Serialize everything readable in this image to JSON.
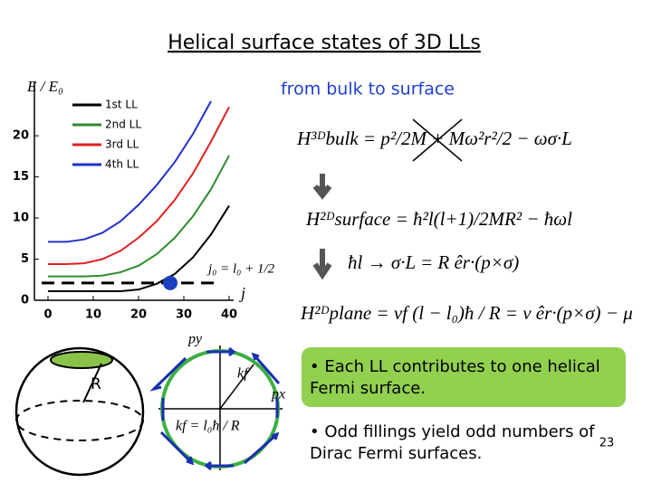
{
  "header": {
    "title": "Helical surface states of 3D LLs",
    "subtitle": "from bulk to surface"
  },
  "chart_data": {
    "type": "line",
    "ylabel": "E / E₀",
    "xlabel": "j",
    "annotation": "j₀ = l₀ + 1/2",
    "x": [
      0,
      4,
      8,
      12,
      16,
      20,
      24,
      28,
      32,
      36,
      40
    ],
    "series": [
      {
        "name": "1st LL",
        "color": "#000000",
        "values": [
          1.1,
          1.1,
          1.1,
          1.1,
          1.1,
          1.3,
          2.0,
          3.2,
          5.2,
          8.0,
          11.5
        ]
      },
      {
        "name": "2nd LL",
        "color": "#2e8b2e",
        "values": [
          2.9,
          2.9,
          2.9,
          3.0,
          3.4,
          4.2,
          5.6,
          7.6,
          10.2,
          13.5,
          17.6
        ]
      },
      {
        "name": "3rd LL",
        "color": "#e02020",
        "values": [
          4.4,
          4.4,
          4.5,
          5.0,
          6.0,
          7.6,
          9.6,
          12.2,
          15.4,
          19.3,
          23.5
        ]
      },
      {
        "name": "4th LL",
        "color": "#2030d0",
        "values": [
          7.1,
          7.1,
          7.4,
          8.2,
          9.6,
          11.6,
          14.0,
          16.8,
          20.2,
          24.2,
          null
        ]
      }
    ],
    "fermi_level": 2.1,
    "fermi_point": {
      "x": 27,
      "y": 2.1
    },
    "xlim": [
      -3,
      41
    ],
    "ylim": [
      0,
      26.5
    ],
    "xticks": [
      0,
      10,
      20,
      30,
      40
    ],
    "yticks": [
      0,
      5,
      10,
      15,
      20
    ],
    "legend": "upper-left"
  },
  "equations": {
    "bulk": "H³ᴰbulk = p²/2M + Mω²r²/2 − ωσ·L",
    "surface": "H²ᴰsurface = ħ²l(l+1)/2MR² − ħωl",
    "mapping": "ħl → σ·L = R êr·(p×σ)",
    "plane": "H²ᴰplane = vf (l − l₀)ħ / R = v êr·(p×σ) − μ"
  },
  "diagram": {
    "radius_label": "R",
    "py": "py",
    "px": "px",
    "kf": "kf",
    "kf_formula": "kf = l₀ħ / R"
  },
  "bullets": [
    [
      "• Each LL contributes to one  helical",
      "Fermi surface."
    ],
    [
      "• Odd fillings yield odd numbers of",
      "Dirac Fermi surfaces."
    ]
  ],
  "page_number": "23"
}
